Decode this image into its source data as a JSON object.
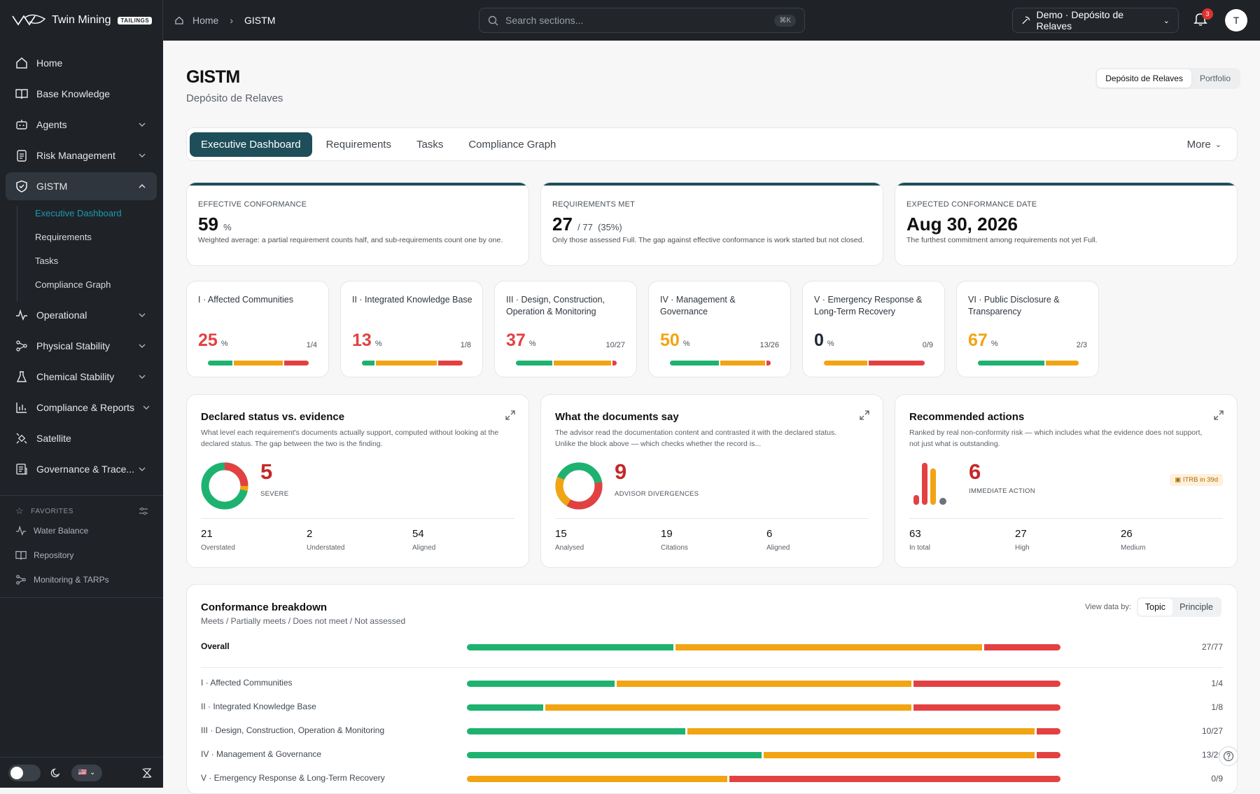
{
  "brand": {
    "name": "Twin Mining",
    "tag": "TAILINGS"
  },
  "breadcrumb": {
    "home": "Home",
    "current": "GISTM"
  },
  "search": {
    "placeholder": "Search sections...",
    "shortcut": "⌘K"
  },
  "project": {
    "label": "Demo · Depósito de Relaves"
  },
  "notifications": {
    "count": "3"
  },
  "user": {
    "initial": "T"
  },
  "sidebar": {
    "items": [
      {
        "label": "Home",
        "icon": "home-icon"
      },
      {
        "label": "Base Knowledge",
        "icon": "book-icon"
      },
      {
        "label": "Agents",
        "icon": "robot-icon"
      },
      {
        "label": "Risk Management",
        "icon": "clipboard-icon"
      },
      {
        "label": "GISTM",
        "icon": "shield-icon"
      },
      {
        "label": "Operational",
        "icon": "activity-icon"
      },
      {
        "label": "Physical Stability",
        "icon": "network-icon"
      },
      {
        "label": "Chemical Stability",
        "icon": "flask-icon"
      },
      {
        "label": "Compliance & Reports",
        "icon": "chart-icon"
      },
      {
        "label": "Satellite",
        "icon": "satellite-icon"
      },
      {
        "label": "Governance & Trace...",
        "icon": "governance-icon"
      }
    ],
    "gistm_sub": [
      "Executive Dashboard",
      "Requirements",
      "Tasks",
      "Compliance Graph"
    ],
    "favorites_label": "FAVORITES",
    "favorites": [
      "Water Balance",
      "Repository",
      "Monitoring & TARPs"
    ]
  },
  "page": {
    "title": "GISTM",
    "subtitle": "Depósito de Relaves",
    "scope": [
      "Depósito de Relaves",
      "Portfolio"
    ]
  },
  "tabs": [
    "Executive Dashboard",
    "Requirements",
    "Tasks",
    "Compliance Graph"
  ],
  "tabs_more": "More",
  "kpis": [
    {
      "label": "EFFECTIVE CONFORMANCE",
      "value": "59",
      "unit": "%",
      "desc": "Weighted average: a partial requirement counts half, and sub-requirements count one by one."
    },
    {
      "label": "REQUIREMENTS MET",
      "value": "27",
      "unit": "/ 77  (35%)",
      "desc": "Only those assessed Full. The gap against effective conformance is work started but not closed."
    },
    {
      "label": "EXPECTED CONFORMANCE DATE",
      "value": "Aug 30, 2026",
      "unit": "",
      "desc": "The furthest commitment among requirements not yet Full."
    }
  ],
  "topics": [
    {
      "name": "I · Affected Communities",
      "pct": "25",
      "frac": "1/4",
      "color": "#e34141",
      "bar": [
        25,
        50,
        25
      ]
    },
    {
      "name": "II · Integrated Knowledge Base",
      "pct": "13",
      "frac": "1/8",
      "color": "#e34141",
      "bar": [
        13,
        62,
        25
      ]
    },
    {
      "name": "III · Design, Construction, Operation & Monitoring",
      "pct": "37",
      "frac": "10/27",
      "color": "#e34141",
      "bar": [
        37,
        59,
        4
      ]
    },
    {
      "name": "IV · Management & Governance",
      "pct": "50",
      "frac": "13/26",
      "color": "#f2a413",
      "bar": [
        50,
        46,
        4
      ]
    },
    {
      "name": "V · Emergency Response & Long-Term Recovery",
      "pct": "0",
      "frac": "0/9",
      "color": "#1f2937",
      "bar": [
        0,
        44,
        56
      ]
    },
    {
      "name": "VI · Public Disclosure & Transparency",
      "pct": "67",
      "frac": "2/3",
      "color": "#f2a413",
      "bar": [
        67,
        33,
        0
      ]
    }
  ],
  "pct_symbol": "%",
  "panels": {
    "declared": {
      "title": "Declared status vs. evidence",
      "desc": "What level each requirement's documents actually support, computed without looking at the declared status. The gap between the two is the finding.",
      "big": "5",
      "big_label": "SEVERE",
      "stats": [
        {
          "n": "21",
          "l": "Overstated"
        },
        {
          "n": "2",
          "l": "Understated"
        },
        {
          "n": "54",
          "l": "Aligned"
        }
      ]
    },
    "documents": {
      "title": "What the documents say",
      "desc": "The advisor read the documentation content and contrasted it with the declared status. Unlike the block above — which checks whether the record is...",
      "big": "9",
      "big_label": "ADVISOR DIVERGENCES",
      "stats": [
        {
          "n": "15",
          "l": "Analysed"
        },
        {
          "n": "19",
          "l": "Citations"
        },
        {
          "n": "6",
          "l": "Aligned"
        }
      ]
    },
    "actions": {
      "title": "Recommended actions",
      "desc": "Ranked by real non-conformity risk — which includes what the evidence does not support, not just what is outstanding.",
      "big": "6",
      "big_label": "IMMEDIATE ACTION",
      "badge": "ITRB in 39d",
      "stats": [
        {
          "n": "63",
          "l": "In total"
        },
        {
          "n": "27",
          "l": "High"
        },
        {
          "n": "26",
          "l": "Medium"
        }
      ]
    }
  },
  "breakdown": {
    "title": "Conformance breakdown",
    "subtitle": "Meets / Partially meets / Does not meet / Not assessed",
    "view_label": "View data by:",
    "view_options": [
      "Topic",
      "Principle"
    ],
    "overall": {
      "label": "Overall",
      "value": "27/77",
      "bar": [
        35,
        52,
        13
      ]
    },
    "rows": [
      {
        "label": "I · Affected Communities",
        "value": "1/4",
        "bar": [
          25,
          50,
          25
        ]
      },
      {
        "label": "II · Integrated Knowledge Base",
        "value": "1/8",
        "bar": [
          13,
          62,
          25
        ]
      },
      {
        "label": "III · Design, Construction, Operation & Monitoring",
        "value": "10/27",
        "bar": [
          37,
          59,
          4
        ]
      },
      {
        "label": "IV · Management & Governance",
        "value": "13/26",
        "bar": [
          50,
          46,
          4
        ]
      },
      {
        "label": "V · Emergency Response & Long-Term Recovery",
        "value": "0/9",
        "bar": [
          0,
          44,
          56
        ]
      }
    ]
  }
}
